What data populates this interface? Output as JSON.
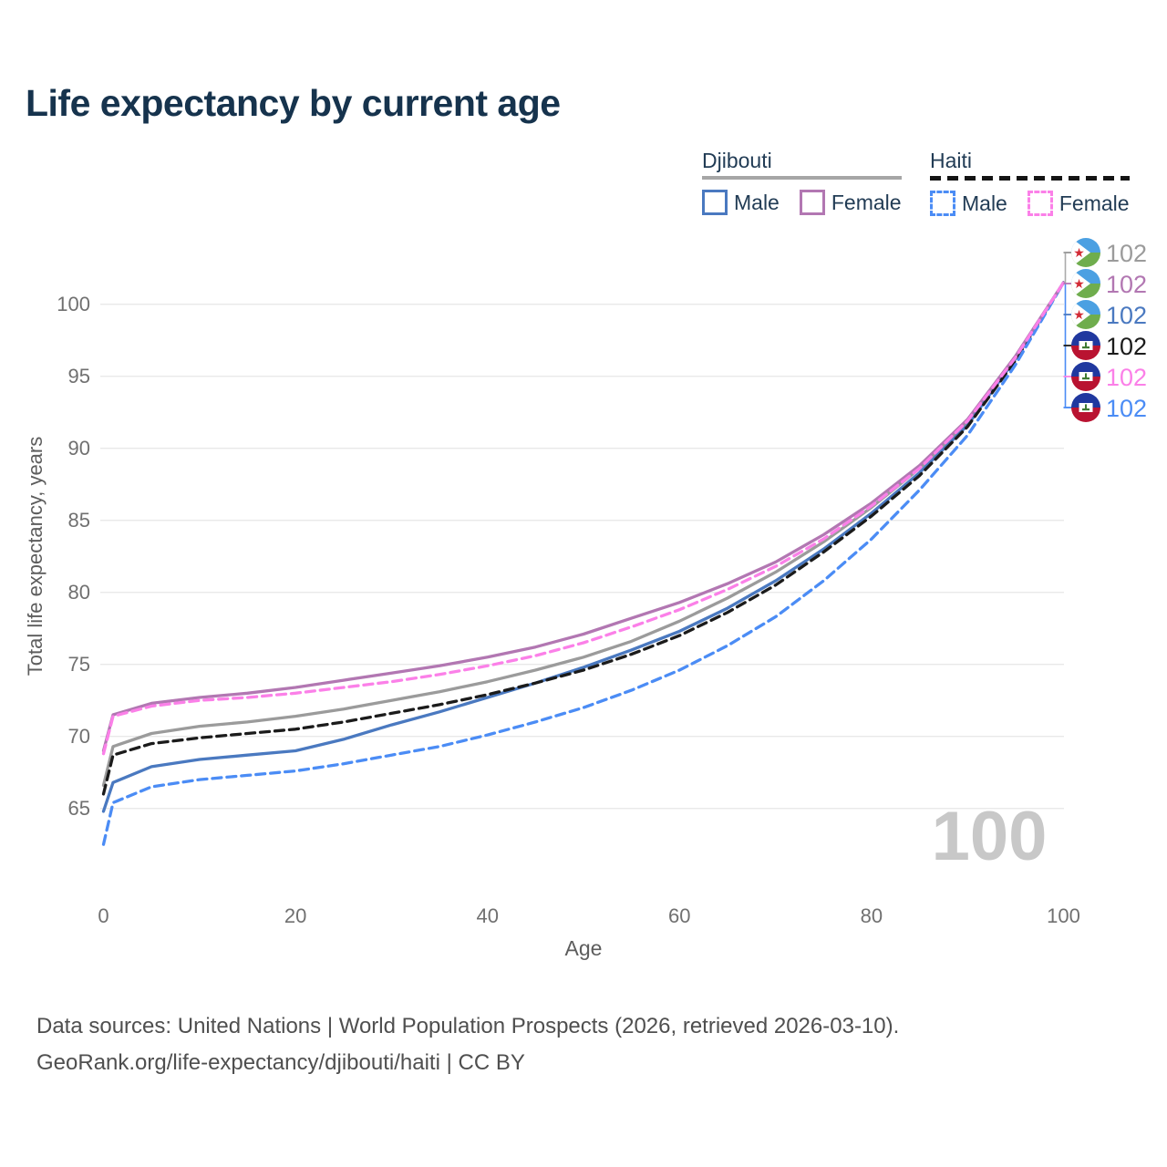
{
  "title": "Life expectancy by current age",
  "legend": {
    "groups": [
      {
        "label": "Djibouti",
        "line_style": "solid",
        "underline_color": "#a6a6a6",
        "items": [
          {
            "label": "Male",
            "color": "#4a79c0"
          },
          {
            "label": "Female",
            "color": "#b277b2"
          }
        ]
      },
      {
        "label": "Haiti",
        "line_style": "dashed",
        "underline_color": "#141414",
        "items": [
          {
            "label": "Male",
            "color": "#4b8cf5"
          },
          {
            "label": "Female",
            "color": "#fb80e8"
          }
        ]
      }
    ]
  },
  "watermark_age": "100",
  "footer": {
    "line1": "Data sources: United Nations | World Population Prospects (2026, retrieved 2026-03-10).",
    "line2": "GeoRank.org/life-expectancy/djibouti/haiti | CC BY"
  },
  "flag_colors": {
    "djibouti": {
      "top_blue": "#4ba0e2",
      "bottom_green": "#6fad4d",
      "star_red": "#d22b35",
      "triangle": "#ffffff"
    },
    "haiti": {
      "top_blue": "#20389f",
      "bottom_red": "#b91331",
      "panel": "#ffffff",
      "emblem_green": "#3f7a33"
    }
  },
  "chart_data": {
    "type": "line",
    "title": "Life expectancy by current age",
    "xlabel": "Age",
    "ylabel": "Total life expectancy, years",
    "xlim": [
      0,
      100
    ],
    "ylim": [
      62,
      103
    ],
    "x_ticks": [
      0,
      20,
      40,
      60,
      80,
      100
    ],
    "y_ticks": [
      65,
      70,
      75,
      80,
      85,
      90,
      95,
      100
    ],
    "grid": "horizontal-only",
    "legend_position": "top-right",
    "x": [
      0,
      1,
      5,
      10,
      15,
      20,
      25,
      30,
      35,
      40,
      45,
      50,
      55,
      60,
      65,
      70,
      75,
      80,
      85,
      90,
      95,
      100
    ],
    "series": [
      {
        "name": "Djibouti Both sexes",
        "country": "Djibouti",
        "sex": "both",
        "color": "#9b9b9b",
        "dashed": false,
        "end_label": "102",
        "label_row": 0,
        "flag": "djibouti",
        "values": [
          66.6,
          69.3,
          70.2,
          70.7,
          71.0,
          71.4,
          71.9,
          72.5,
          73.1,
          73.8,
          74.6,
          75.5,
          76.6,
          78.0,
          79.6,
          81.4,
          83.5,
          85.9,
          88.6,
          91.8,
          96.3,
          101.5
        ]
      },
      {
        "name": "Djibouti Male",
        "country": "Djibouti",
        "sex": "male",
        "color": "#4a79c0",
        "dashed": false,
        "end_label": "102",
        "label_row": 2,
        "flag": "djibouti",
        "values": [
          64.8,
          66.8,
          67.9,
          68.4,
          68.7,
          69.0,
          69.8,
          70.8,
          71.7,
          72.7,
          73.7,
          74.8,
          76.0,
          77.3,
          78.9,
          80.8,
          83.0,
          85.5,
          88.3,
          91.6,
          96.2,
          101.5
        ]
      },
      {
        "name": "Haiti Both sexes",
        "country": "Haiti",
        "sex": "both",
        "color": "#1b1b1b",
        "dashed": true,
        "end_label": "102",
        "label_row": 3,
        "flag": "haiti",
        "values": [
          66.0,
          68.7,
          69.5,
          69.9,
          70.2,
          70.5,
          71.0,
          71.6,
          72.2,
          72.9,
          73.7,
          74.6,
          75.7,
          77.0,
          78.6,
          80.5,
          82.8,
          85.3,
          88.1,
          91.5,
          96.1,
          101.5
        ]
      },
      {
        "name": "Haiti Male",
        "country": "Haiti",
        "sex": "male",
        "color": "#4b8cf5",
        "dashed": true,
        "end_label": "102",
        "label_row": 5,
        "flag": "haiti",
        "values": [
          62.5,
          65.4,
          66.5,
          67.0,
          67.3,
          67.6,
          68.1,
          68.7,
          69.3,
          70.1,
          71.0,
          72.0,
          73.2,
          74.6,
          76.3,
          78.3,
          80.8,
          83.7,
          87.1,
          90.9,
          95.8,
          101.5
        ]
      },
      {
        "name": "Djibouti Female",
        "country": "Djibouti",
        "sex": "female",
        "color": "#b277b2",
        "dashed": false,
        "end_label": "102",
        "label_row": 1,
        "flag": "djibouti",
        "values": [
          69.0,
          71.5,
          72.3,
          72.7,
          73.0,
          73.4,
          73.9,
          74.4,
          74.9,
          75.5,
          76.2,
          77.1,
          78.2,
          79.3,
          80.6,
          82.1,
          84.0,
          86.2,
          88.8,
          92.0,
          96.4,
          101.5
        ]
      },
      {
        "name": "Haiti Female",
        "country": "Haiti",
        "sex": "female",
        "color": "#fb80e8",
        "dashed": true,
        "end_label": "102",
        "label_row": 4,
        "flag": "haiti",
        "values": [
          68.8,
          71.4,
          72.1,
          72.5,
          72.7,
          73.0,
          73.4,
          73.8,
          74.3,
          74.9,
          75.6,
          76.5,
          77.6,
          78.8,
          80.2,
          81.8,
          83.7,
          86.0,
          88.6,
          91.9,
          96.3,
          101.5
        ]
      }
    ]
  }
}
